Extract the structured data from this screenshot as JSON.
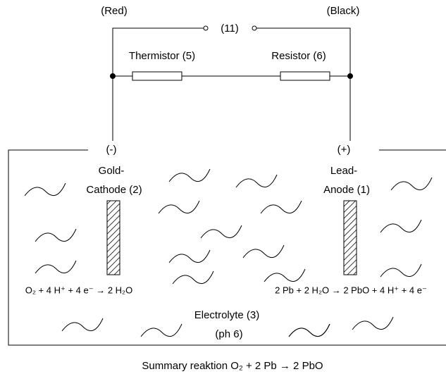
{
  "circuit": {
    "left_lead": "(Red)",
    "right_lead": "(Black)",
    "switch": "(11)",
    "thermistor": "Thermistor (5)",
    "resistor": "Resistor (6)"
  },
  "cell": {
    "cathode_sign": "(-)",
    "cathode_line1": "Gold-",
    "cathode_line2": "Cathode (2)",
    "anode_sign": "(+)",
    "anode_line1": "Lead-",
    "anode_line2": "Anode (1)",
    "cathode_reaction": "O₂ + 4 H⁺ + 4 e⁻ → 2 H₂O",
    "anode_reaction": "2 Pb + 2 H₂O → 2 PbO + 4 H⁺ + 4 e⁻",
    "electrolyte_line1": "Electrolyte (3)",
    "electrolyte_line2": "(ph 6)"
  },
  "summary": "Summary reaktion O₂ + 2 Pb → 2 PbO"
}
